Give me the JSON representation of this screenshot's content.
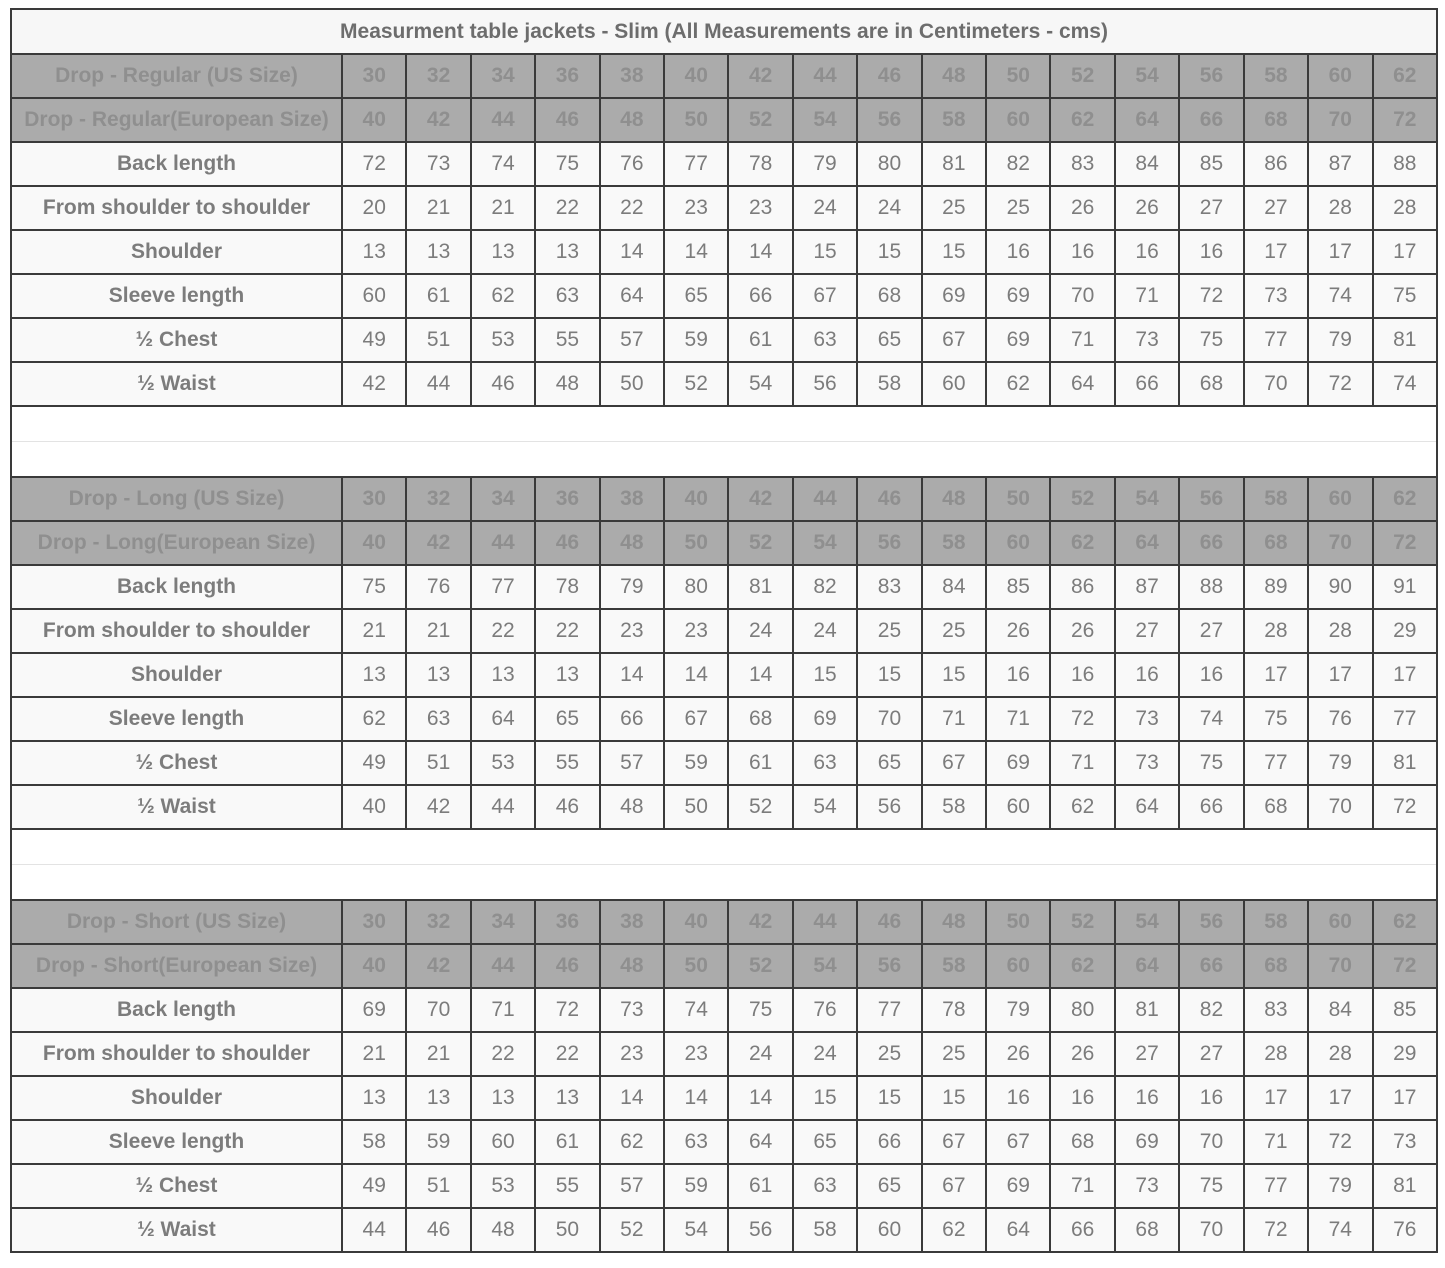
{
  "title": "Measurment table jackets - Slim (All Measurements are in Centimeters - cms)",
  "units": "Centimeters - cms",
  "colors": {
    "border": "#3a3a3a",
    "header_bg": "#ababab",
    "header_text": "#8f8f8f",
    "title_text": "#6d6d6d",
    "label_text": "#676767",
    "value_text": "#7c7c7c",
    "row_bg": "#f9f9f9",
    "title_bg": "#f7f7f7",
    "spacer_line": "#e3e3e3"
  },
  "sections": [
    {
      "us_label": "Drop - Regular (US Size)",
      "eu_label": "Drop - Regular(European Size)",
      "us_sizes": [
        "30",
        "32",
        "34",
        "36",
        "38",
        "40",
        "42",
        "44",
        "46",
        "48",
        "50",
        "52",
        "54",
        "56",
        "58",
        "60",
        "62"
      ],
      "eu_sizes": [
        "40",
        "42",
        "44",
        "46",
        "48",
        "50",
        "52",
        "54",
        "56",
        "58",
        "60",
        "62",
        "64",
        "66",
        "68",
        "70",
        "72"
      ],
      "rows": [
        {
          "label": "Back length",
          "values": [
            "72",
            "73",
            "74",
            "75",
            "76",
            "77",
            "78",
            "79",
            "80",
            "81",
            "82",
            "83",
            "84",
            "85",
            "86",
            "87",
            "88"
          ]
        },
        {
          "label": "From shoulder to shoulder",
          "values": [
            "20",
            "21",
            "21",
            "22",
            "22",
            "23",
            "23",
            "24",
            "24",
            "25",
            "25",
            "26",
            "26",
            "27",
            "27",
            "28",
            "28"
          ]
        },
        {
          "label": "Shoulder",
          "values": [
            "13",
            "13",
            "13",
            "13",
            "14",
            "14",
            "14",
            "15",
            "15",
            "15",
            "16",
            "16",
            "16",
            "16",
            "17",
            "17",
            "17"
          ]
        },
        {
          "label": "Sleeve length",
          "values": [
            "60",
            "61",
            "62",
            "63",
            "64",
            "65",
            "66",
            "67",
            "68",
            "69",
            "69",
            "70",
            "71",
            "72",
            "73",
            "74",
            "75"
          ]
        },
        {
          "label": "½ Chest",
          "values": [
            "49",
            "51",
            "53",
            "55",
            "57",
            "59",
            "61",
            "63",
            "65",
            "67",
            "69",
            "71",
            "73",
            "75",
            "77",
            "79",
            "81"
          ]
        },
        {
          "label": "½ Waist",
          "values": [
            "42",
            "44",
            "46",
            "48",
            "50",
            "52",
            "54",
            "56",
            "58",
            "60",
            "62",
            "64",
            "66",
            "68",
            "70",
            "72",
            "74"
          ]
        }
      ]
    },
    {
      "us_label": "Drop - Long (US Size)",
      "eu_label": "Drop - Long(European Size)",
      "us_sizes": [
        "30",
        "32",
        "34",
        "36",
        "38",
        "40",
        "42",
        "44",
        "46",
        "48",
        "50",
        "52",
        "54",
        "56",
        "58",
        "60",
        "62"
      ],
      "eu_sizes": [
        "40",
        "42",
        "44",
        "46",
        "48",
        "50",
        "52",
        "54",
        "56",
        "58",
        "60",
        "62",
        "64",
        "66",
        "68",
        "70",
        "72"
      ],
      "rows": [
        {
          "label": "Back length",
          "values": [
            "75",
            "76",
            "77",
            "78",
            "79",
            "80",
            "81",
            "82",
            "83",
            "84",
            "85",
            "86",
            "87",
            "88",
            "89",
            "90",
            "91"
          ]
        },
        {
          "label": "From shoulder to shoulder",
          "values": [
            "21",
            "21",
            "22",
            "22",
            "23",
            "23",
            "24",
            "24",
            "25",
            "25",
            "26",
            "26",
            "27",
            "27",
            "28",
            "28",
            "29"
          ]
        },
        {
          "label": "Shoulder",
          "values": [
            "13",
            "13",
            "13",
            "13",
            "14",
            "14",
            "14",
            "15",
            "15",
            "15",
            "16",
            "16",
            "16",
            "16",
            "17",
            "17",
            "17"
          ]
        },
        {
          "label": "Sleeve length",
          "values": [
            "62",
            "63",
            "64",
            "65",
            "66",
            "67",
            "68",
            "69",
            "70",
            "71",
            "71",
            "72",
            "73",
            "74",
            "75",
            "76",
            "77"
          ]
        },
        {
          "label": "½ Chest",
          "values": [
            "49",
            "51",
            "53",
            "55",
            "57",
            "59",
            "61",
            "63",
            "65",
            "67",
            "69",
            "71",
            "73",
            "75",
            "77",
            "79",
            "81"
          ]
        },
        {
          "label": "½ Waist",
          "values": [
            "40",
            "42",
            "44",
            "46",
            "48",
            "50",
            "52",
            "54",
            "56",
            "58",
            "60",
            "62",
            "64",
            "66",
            "68",
            "70",
            "72"
          ]
        }
      ]
    },
    {
      "us_label": "Drop - Short (US Size)",
      "eu_label": "Drop - Short(European Size)",
      "us_sizes": [
        "30",
        "32",
        "34",
        "36",
        "38",
        "40",
        "42",
        "44",
        "46",
        "48",
        "50",
        "52",
        "54",
        "56",
        "58",
        "60",
        "62"
      ],
      "eu_sizes": [
        "40",
        "42",
        "44",
        "46",
        "48",
        "50",
        "52",
        "54",
        "56",
        "58",
        "60",
        "62",
        "64",
        "66",
        "68",
        "70",
        "72"
      ],
      "rows": [
        {
          "label": "Back length",
          "values": [
            "69",
            "70",
            "71",
            "72",
            "73",
            "74",
            "75",
            "76",
            "77",
            "78",
            "79",
            "80",
            "81",
            "82",
            "83",
            "84",
            "85"
          ]
        },
        {
          "label": "From shoulder to shoulder",
          "values": [
            "21",
            "21",
            "22",
            "22",
            "23",
            "23",
            "24",
            "24",
            "25",
            "25",
            "26",
            "26",
            "27",
            "27",
            "28",
            "28",
            "29"
          ]
        },
        {
          "label": "Shoulder",
          "values": [
            "13",
            "13",
            "13",
            "13",
            "14",
            "14",
            "14",
            "15",
            "15",
            "15",
            "16",
            "16",
            "16",
            "16",
            "17",
            "17",
            "17"
          ]
        },
        {
          "label": "Sleeve length",
          "values": [
            "58",
            "59",
            "60",
            "61",
            "62",
            "63",
            "64",
            "65",
            "66",
            "67",
            "67",
            "68",
            "69",
            "70",
            "71",
            "72",
            "73"
          ]
        },
        {
          "label": "½ Chest",
          "values": [
            "49",
            "51",
            "53",
            "55",
            "57",
            "59",
            "61",
            "63",
            "65",
            "67",
            "69",
            "71",
            "73",
            "75",
            "77",
            "79",
            "81"
          ]
        },
        {
          "label": "½ Waist",
          "values": [
            "44",
            "46",
            "48",
            "50",
            "52",
            "54",
            "56",
            "58",
            "60",
            "62",
            "64",
            "66",
            "68",
            "70",
            "72",
            "74",
            "76"
          ]
        }
      ]
    }
  ]
}
